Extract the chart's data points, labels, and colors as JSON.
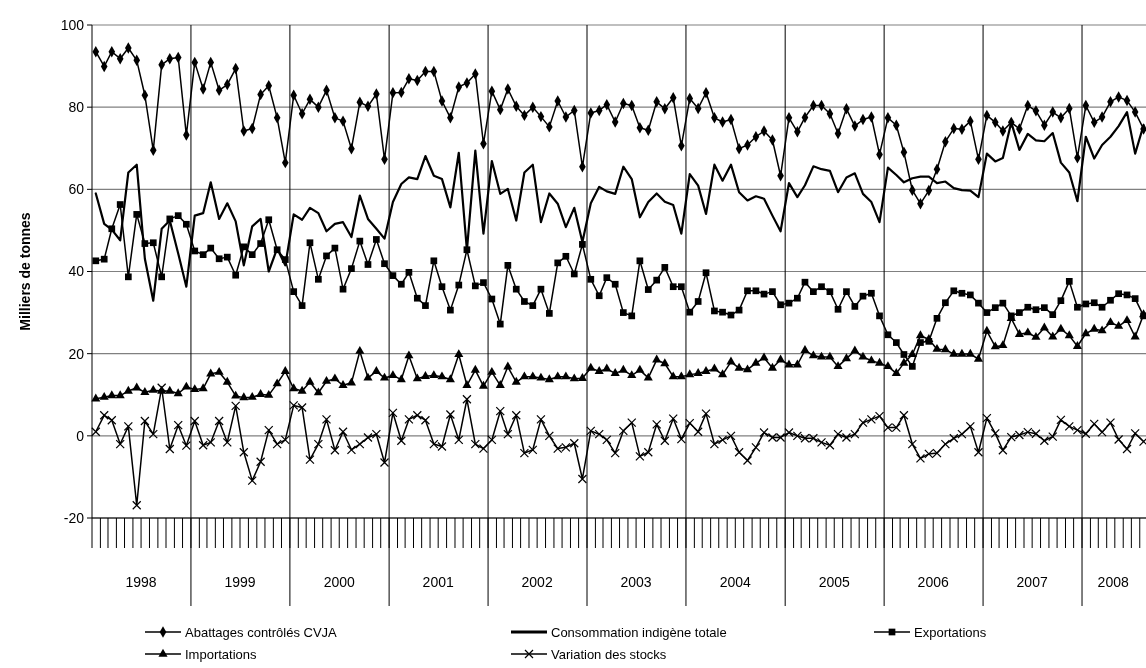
{
  "chart_data": {
    "type": "line",
    "ylabel": "Milliers de tonnes",
    "grid": true,
    "legend": "bottom",
    "x": [
      "1998-01-15",
      "1998-02-15",
      "1998-03-15",
      "1998-04-15",
      "1998-05-15",
      "1998-06-15",
      "1998-07-15",
      "1998-08-15",
      "1998-09-15",
      "1998-10-15",
      "1998-11-15",
      "1998-12-15",
      "1999-01-15",
      "1999-02-15",
      "1999-03-15",
      "1999-04-15",
      "1999-05-15",
      "1999-06-15",
      "1999-07-15",
      "1999-08-15",
      "1999-09-15",
      "1999-10-15",
      "1999-11-15",
      "1999-12-15",
      "2000-01-15",
      "2000-02-15",
      "2000-03-15",
      "2000-04-15",
      "2000-05-15",
      "2000-06-15",
      "2000-07-15",
      "2000-08-15",
      "2000-09-15",
      "2000-10-15",
      "2000-11-15",
      "2000-12-15",
      "2001-01-15",
      "2001-02-15",
      "2001-03-15",
      "2001-04-15",
      "2001-05-15",
      "2001-06-15",
      "2001-07-15",
      "2001-08-15",
      "2001-09-15",
      "2001-10-15",
      "2001-11-15",
      "2001-12-15",
      "2002-01-15",
      "2002-02-15",
      "2002-03-15",
      "2002-04-15",
      "2002-05-15",
      "2002-06-15",
      "2002-07-15",
      "2002-08-15",
      "2002-09-15",
      "2002-10-15",
      "2002-11-15",
      "2002-12-15",
      "2003-01-15",
      "2003-02-15",
      "2003-03-15",
      "2003-04-15",
      "2003-05-15",
      "2003-06-15",
      "2003-07-15",
      "2003-08-15",
      "2003-09-15",
      "2003-10-15",
      "2003-11-15",
      "2003-12-15",
      "2004-01-15",
      "2004-02-15",
      "2004-03-15",
      "2004-04-15",
      "2004-05-15",
      "2004-06-15",
      "2004-07-15",
      "2004-08-15",
      "2004-09-15",
      "2004-10-15",
      "2004-11-15",
      "2004-12-15",
      "2005-01-15",
      "2005-02-15",
      "2005-03-15",
      "2005-04-15",
      "2005-05-15",
      "2005-06-15",
      "2005-07-15",
      "2005-08-15",
      "2005-09-15",
      "2005-10-15",
      "2005-11-15",
      "2005-12-15",
      "2006-01-15",
      "2006-02-15",
      "2006-03-15",
      "2006-04-15",
      "2006-05-15",
      "2006-06-15",
      "2006-07-15",
      "2006-08-15",
      "2006-09-15",
      "2006-10-15",
      "2006-11-15",
      "2006-12-15",
      "2007-01-15",
      "2007-02-15",
      "2007-03-15",
      "2007-04-15",
      "2007-05-15",
      "2007-06-15",
      "2007-07-15",
      "2007-08-15",
      "2007-09-15",
      "2007-10-15",
      "2007-11-15",
      "2007-12-15",
      "2008-01-15",
      "2008-02-15",
      "2008-03-15",
      "2008-04-15",
      "2008-05-15",
      "2008-06-15",
      "2008-07-15",
      "2008-08-15"
    ],
    "xlim": [
      "1998-01-01",
      "2008-08-24"
    ],
    "xticks": [
      {
        "value": "1998-07-01",
        "label": "1998"
      },
      {
        "value": "1999-01-01",
        "label": null
      },
      {
        "value": "1999-07-01",
        "label": "1999"
      },
      {
        "value": "2000-01-01",
        "label": null
      },
      {
        "value": "2000-07-01",
        "label": "2000"
      },
      {
        "value": "2001-01-01",
        "label": null
      },
      {
        "value": "2001-07-01",
        "label": "2001"
      },
      {
        "value": "2002-01-01",
        "label": null
      },
      {
        "value": "2002-07-01",
        "label": "2002"
      },
      {
        "value": "2003-01-01",
        "label": null
      },
      {
        "value": "2003-07-01",
        "label": "2003"
      },
      {
        "value": "2004-01-01",
        "label": null
      },
      {
        "value": "2004-07-01",
        "label": "2004"
      },
      {
        "value": "2005-01-01",
        "label": null
      },
      {
        "value": "2005-07-01",
        "label": "2005"
      },
      {
        "value": "2006-01-01",
        "label": null
      },
      {
        "value": "2006-07-01",
        "label": "2006"
      },
      {
        "value": "2007-01-01",
        "label": null
      },
      {
        "value": "2007-07-01",
        "label": "2007"
      },
      {
        "value": "2008-01-01",
        "label": null
      },
      {
        "value": "2008-04-25",
        "label": "2008"
      }
    ],
    "ylim": [
      -20,
      100
    ],
    "yticks": [
      -20,
      0,
      20,
      40,
      60,
      80,
      100
    ],
    "series": [
      {
        "name": "Abattages contrôlés CVJA",
        "color": "#000000",
        "marker": "diamond",
        "values": [
          93.5,
          89.9,
          93.5,
          91.8,
          94.4,
          91.4,
          82.9,
          69.5,
          90.3,
          91.8,
          92.1,
          73.2,
          90.9,
          84.4,
          90.9,
          84.1,
          85.5,
          89.4,
          74.2,
          74.8,
          83.1,
          85.2,
          77.4,
          66.5,
          82.9,
          78.4,
          81.9,
          80,
          84.1,
          77.4,
          76.6,
          69.9,
          81.2,
          80.2,
          83.2,
          67.3,
          83.5,
          83.6,
          86.9,
          86.5,
          88.7,
          88.7,
          81.5,
          77.4,
          84.9,
          85.9,
          88.1,
          71.1,
          83.9,
          79.4,
          84.4,
          80.2,
          78,
          80,
          77.7,
          75.2,
          81.5,
          77.6,
          79.2,
          65.5,
          78.6,
          79.2,
          80.6,
          76.4,
          80.9,
          80.4,
          75,
          74.4,
          81.3,
          79.6,
          82.3,
          70.6,
          82.1,
          79.7,
          83.5,
          77.4,
          76.4,
          77,
          69.9,
          70.8,
          72.8,
          74.2,
          72,
          63.3,
          77.4,
          74,
          77.5,
          80.4,
          80.4,
          78.4,
          73.6,
          79.6,
          75.4,
          77,
          77.6,
          68.5,
          77.4,
          75.6,
          69,
          59.8,
          56.5,
          59.7,
          64.9,
          71.6,
          74.8,
          74.6,
          76.6,
          67.3,
          78,
          76.3,
          74.2,
          76.3,
          74.7,
          80.4,
          79.1,
          75.6,
          78.8,
          77.4,
          79.7,
          67.7,
          80.4,
          76.3,
          77.6,
          81.3,
          82.5,
          81.6,
          78.8,
          74.7
        ]
      },
      {
        "name": "Consommation indigène totale",
        "color": "#000000",
        "marker": "none",
        "values": [
          59,
          51.6,
          50.2,
          47.6,
          64.1,
          66,
          43.1,
          32.9,
          50.4,
          52.4,
          44.4,
          36.3,
          53.6,
          54.2,
          61.7,
          52.8,
          56.6,
          52.2,
          41.5,
          51,
          52.8,
          40,
          45.6,
          41.5,
          53.9,
          52.6,
          55.5,
          54.2,
          49.8,
          51.6,
          52,
          48.4,
          58.5,
          52.8,
          50.4,
          48,
          56.9,
          61.3,
          62.9,
          62.5,
          68.1,
          63.3,
          62.5,
          55.6,
          68.9,
          45.2,
          69.4,
          49.2,
          66.9,
          58.9,
          60.1,
          52.4,
          64.1,
          66,
          52,
          59,
          56.5,
          50.8,
          55.5,
          47.2,
          56.6,
          60.6,
          59.5,
          58.9,
          65.5,
          62.5,
          53.2,
          56.9,
          59,
          57,
          56.2,
          49.2,
          63.7,
          60.9,
          54,
          66,
          62.1,
          66,
          59.3,
          57.3,
          58.3,
          57.7,
          53.6,
          49.8,
          61.5,
          58.1,
          61,
          65.6,
          64.9,
          64.5,
          59.3,
          62.9,
          63.9,
          58.9,
          56.9,
          52,
          65.3,
          63.5,
          61.7,
          62.7,
          63.1,
          63.1,
          61.5,
          61.9,
          60.3,
          59.8,
          59.7,
          58.1,
          68.7,
          66.8,
          67.6,
          76.3,
          69.6,
          73.5,
          71.9,
          71.7,
          73.7,
          66.5,
          64.1,
          57.1,
          72.8,
          67.5,
          70.8,
          72.8,
          75.4,
          78.8,
          68.7,
          75.6
        ]
      },
      {
        "name": "Exportations",
        "color": "#000000",
        "marker": "square",
        "values": [
          42.6,
          43,
          50.4,
          56.3,
          38.7,
          53.9,
          46.8,
          47,
          38.7,
          52.8,
          53.6,
          51.5,
          45,
          44.1,
          45.7,
          43.1,
          43.5,
          39.1,
          46,
          44.1,
          46.8,
          52.6,
          45.3,
          42.9,
          35.1,
          31.7,
          47,
          38.1,
          43.8,
          45.7,
          35.7,
          40.7,
          47.4,
          41.7,
          47.8,
          41.9,
          39,
          36.9,
          39.8,
          33.5,
          31.7,
          42.6,
          36.3,
          30.6,
          36.7,
          45.3,
          36.5,
          37.3,
          33.3,
          27.2,
          41.5,
          35.7,
          32.7,
          31.7,
          35.7,
          29.8,
          42.1,
          43.7,
          39.4,
          46.6,
          38.1,
          34.1,
          38.5,
          36.9,
          30,
          29.2,
          42.6,
          35.6,
          37.9,
          41,
          36.3,
          36.3,
          30.1,
          32.7,
          39.7,
          30.4,
          30.1,
          29.4,
          30.6,
          35.3,
          35.3,
          34.5,
          35.1,
          31.9,
          32.3,
          33.5,
          37.4,
          35.1,
          36.3,
          35.1,
          30.8,
          35.1,
          31.5,
          34,
          34.7,
          29.2,
          24.6,
          22.7,
          19.8,
          16.9,
          22.7,
          23,
          28.6,
          32.4,
          35.3,
          34.7,
          34.3,
          32.3,
          30,
          31.2,
          32.3,
          29.2,
          30,
          31.3,
          30.7,
          31.2,
          29.5,
          32.9,
          37.6,
          31.3,
          32.1,
          32.4,
          31.3,
          33,
          34.6,
          34.3,
          33.4,
          29.2
        ]
      },
      {
        "name": "Importations",
        "color": "#000000",
        "marker": "triangle",
        "values": [
          9,
          9.4,
          9.8,
          9.8,
          10.9,
          11.7,
          10.6,
          11.1,
          10.9,
          10.9,
          10.3,
          11.9,
          11.3,
          11.5,
          15.1,
          15.5,
          13.1,
          9.7,
          9.3,
          9.4,
          10.1,
          9.9,
          12.7,
          15.7,
          11.5,
          10.9,
          13.1,
          10.5,
          13.3,
          13.9,
          12.3,
          12.9,
          20.6,
          14.1,
          15.7,
          14.1,
          14.7,
          13.7,
          19.5,
          13.9,
          14.5,
          14.7,
          14.4,
          13.7,
          19.8,
          12.3,
          16,
          12.1,
          15.5,
          12.3,
          16.8,
          13.1,
          14.4,
          14.4,
          14.1,
          13.7,
          14.4,
          14.4,
          13.9,
          14,
          16.5,
          15.7,
          16.3,
          15.2,
          16,
          14.7,
          16,
          14.1,
          18.5,
          17.6,
          14.4,
          14.4,
          14.9,
          15.2,
          15.7,
          16.3,
          14.9,
          18,
          16.5,
          16.1,
          17.7,
          19,
          16.5,
          18.5,
          17.3,
          17.3,
          20.8,
          19.5,
          19.2,
          19.2,
          16.9,
          18.8,
          20.7,
          19.2,
          18.3,
          17.7,
          16.9,
          15.2,
          17.7,
          19.8,
          24.4,
          23.5,
          21.1,
          21,
          19.9,
          19.9,
          19.9,
          18.7,
          25.5,
          21.7,
          22,
          28.6,
          24.7,
          25.1,
          24,
          26.3,
          24.1,
          26,
          24.4,
          21.8,
          24.9,
          26,
          25.6,
          27.6,
          26.7,
          28.1,
          24.1,
          29.5
        ]
      },
      {
        "name": "Variation des stocks",
        "color": "#000000",
        "marker": "cross",
        "values": [
          1,
          5,
          3.8,
          -2,
          2.3,
          -16.9,
          3.6,
          0.4,
          11.7,
          -3.2,
          2.6,
          -2.4,
          3.6,
          -2.3,
          -1.6,
          3.6,
          -1.6,
          7.3,
          -4,
          -10.9,
          -6.3,
          1.4,
          -2,
          -1,
          7.4,
          6.9,
          -5.8,
          -2,
          4,
          -3.5,
          1,
          -3.4,
          -2,
          -0.4,
          0.4,
          -6.5,
          5.6,
          -1.2,
          4,
          5,
          3.8,
          -2,
          -2.6,
          5.2,
          -1,
          8.9,
          -2,
          -3.1,
          -1,
          6,
          0.4,
          5,
          -4.2,
          -3.4,
          4,
          0,
          -3.1,
          -2.8,
          -1.8,
          -10.5,
          1.2,
          0.4,
          -1,
          -4.2,
          1.2,
          3.2,
          -5,
          -4,
          2.8,
          -1.2,
          4.2,
          -0.8,
          3.1,
          1,
          5.4,
          -2,
          -1,
          0,
          -4,
          -6,
          -2.8,
          0.8,
          -0.4,
          -0.4,
          0.8,
          0,
          -0.6,
          -0.6,
          -1.6,
          -2.3,
          0.4,
          -0.4,
          0.4,
          3.2,
          4,
          4.8,
          2,
          2,
          5,
          -2,
          -5.5,
          -4.4,
          -4.2,
          -2,
          -0.6,
          0.4,
          2.3,
          -4,
          4.3,
          0.6,
          -3.5,
          -0.3,
          0.2,
          0.9,
          0.5,
          -1.2,
          -0.2,
          3.9,
          2.3,
          1.4,
          0.5,
          2.9,
          0.9,
          3.2,
          -0.9,
          -3.2,
          0.6,
          -1.4
        ]
      }
    ]
  }
}
